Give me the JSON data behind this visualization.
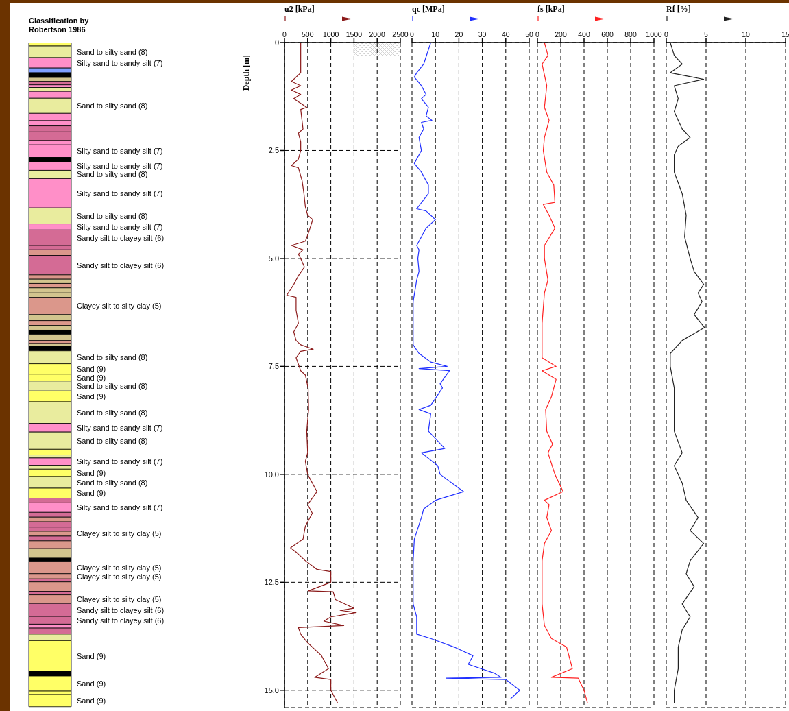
{
  "chart_data": [
    {
      "type": "bar",
      "title": "Classification by Robertson 1986",
      "categories": [
        null
      ],
      "stacked": true,
      "ylim": [
        15.4,
        0
      ],
      "tick_labels": false,
      "series": [
        {
          "color": "#ffff66",
          "values": [
            0.08
          ]
        },
        {
          "name": "Sand to silty sand (8)",
          "color": "#e9ec9e",
          "values": [
            0.27
          ]
        },
        {
          "name": "Silty sand to sandy silt (7)",
          "color": "#ff8fc8",
          "values": [
            0.24
          ]
        },
        {
          "color": "#7f9fff",
          "values": [
            0.11
          ]
        },
        {
          "color": "#000000",
          "values": [
            0.11
          ]
        },
        {
          "color": "#d2c48e",
          "values": [
            0.09
          ]
        },
        {
          "color": "#d46b95",
          "values": [
            0.08
          ]
        },
        {
          "color": "#ff8fc8",
          "values": [
            0.06
          ]
        },
        {
          "color": "#e9ec9e",
          "values": [
            0.09
          ]
        },
        {
          "color": "#ff8fc8",
          "values": [
            0.16
          ]
        },
        {
          "name": "Sand to silty sand (8)",
          "color": "#e9ec9e",
          "values": [
            0.35
          ]
        },
        {
          "color": "#ff8fc8",
          "values": [
            0.17
          ]
        },
        {
          "color": "#ff8fc8",
          "values": [
            0.12
          ]
        },
        {
          "color": "#d46b95",
          "values": [
            0.14
          ]
        },
        {
          "color": "#d46b95",
          "values": [
            0.2
          ]
        },
        {
          "color": "#ff8fc8",
          "values": [
            0.1
          ]
        },
        {
          "name": "Silty sand to sandy silt (7)",
          "color": "#ff8fc8",
          "values": [
            0.29
          ]
        },
        {
          "color": "#000000",
          "values": [
            0.11
          ]
        },
        {
          "name": "Silty sand to sandy silt (7)",
          "color": "#ff8fc8",
          "values": [
            0.19
          ]
        },
        {
          "name": "Sand to silty sand (8)",
          "color": "#e9ec9e",
          "values": [
            0.19
          ]
        },
        {
          "name": "Silty sand to sandy silt (7)",
          "color": "#ff8fc8",
          "values": [
            0.68
          ]
        },
        {
          "name": "Sand to silty sand (8)",
          "color": "#e9ec9e",
          "values": [
            0.37
          ]
        },
        {
          "name": "Silty sand to sandy silt (7)",
          "color": "#ff8fc8",
          "values": [
            0.14
          ]
        },
        {
          "name": "Sandy silt to clayey silt (6)",
          "color": "#d46b95",
          "values": [
            0.36
          ]
        },
        {
          "color": "#d46b95",
          "values": [
            0.1
          ]
        },
        {
          "color": "#db978b",
          "values": [
            0.13
          ]
        },
        {
          "name": "Sandy silt to clayey silt (6)",
          "color": "#d46b95",
          "values": [
            0.45
          ]
        },
        {
          "color": "#db978b",
          "values": [
            0.1
          ]
        },
        {
          "color": "#d2c48e",
          "values": [
            0.1
          ]
        },
        {
          "color": "#db978b",
          "values": [
            0.1
          ]
        },
        {
          "color": "#d2c48e",
          "values": [
            0.12
          ]
        },
        {
          "color": "#d2c48e",
          "values": [
            0.1
          ]
        },
        {
          "name": "Clayey silt to silty clay (5)",
          "color": "#db978b",
          "values": [
            0.4
          ]
        },
        {
          "color": "#d2c48e",
          "values": [
            0.14
          ]
        },
        {
          "color": "#db978b",
          "values": [
            0.11
          ]
        },
        {
          "color": "#d2c48e",
          "values": [
            0.11
          ]
        },
        {
          "color": "#000000",
          "values": [
            0.1
          ]
        },
        {
          "color": "#d2c48e",
          "values": [
            0.14
          ]
        },
        {
          "color": "#db978b",
          "values": [
            0.07
          ]
        },
        {
          "color": "#d2c48e",
          "values": [
            0.06
          ]
        },
        {
          "color": "#000000",
          "values": [
            0.11
          ]
        },
        {
          "name": "Sand to silty sand (8)",
          "color": "#e9ec9e",
          "values": [
            0.3
          ]
        },
        {
          "name": "Sand (9)",
          "color": "#ffff66",
          "values": [
            0.24
          ]
        },
        {
          "name": "Sand (9)",
          "color": "#ffff66",
          "values": [
            0.16
          ]
        },
        {
          "name": "Sand to silty sand (8)",
          "color": "#e9ec9e",
          "values": [
            0.23
          ]
        },
        {
          "name": "Sand (9)",
          "color": "#ffff66",
          "values": [
            0.25
          ]
        },
        {
          "name": "Sand to silty sand (8)",
          "color": "#e9ec9e",
          "values": [
            0.5
          ]
        },
        {
          "name": "Silty sand to sandy silt (7)",
          "color": "#ff8fc8",
          "values": [
            0.2
          ]
        },
        {
          "name": "Sand to silty sand (8)",
          "color": "#e9ec9e",
          "values": [
            0.4
          ]
        },
        {
          "color": "#ffff66",
          "values": [
            0.13
          ]
        },
        {
          "color": "#e9ec9e",
          "values": [
            0.07
          ]
        },
        {
          "name": "Silty sand to sandy silt (7)",
          "color": "#ff8fc8",
          "values": [
            0.17
          ]
        },
        {
          "color": "#e9ec9e",
          "values": [
            0.09
          ]
        },
        {
          "name": "Sand (9)",
          "color": "#ffff66",
          "values": [
            0.17
          ]
        },
        {
          "name": "Sand to silty sand (8)",
          "color": "#e9ec9e",
          "values": [
            0.27
          ]
        },
        {
          "name": "Sand (9)",
          "color": "#ffff66",
          "values": [
            0.23
          ]
        },
        {
          "color": "#d46b95",
          "values": [
            0.11
          ]
        },
        {
          "name": "Silty sand to sandy silt (7)",
          "color": "#ff8fc8",
          "values": [
            0.22
          ]
        },
        {
          "color": "#d46b95",
          "values": [
            0.11
          ]
        },
        {
          "color": "#db978b",
          "values": [
            0.11
          ]
        },
        {
          "color": "#d46b95",
          "values": [
            0.12
          ]
        },
        {
          "color": "#d46b95",
          "values": [
            0.1
          ]
        },
        {
          "name": "Clayey silt to silty clay (5)",
          "color": "#db978b",
          "values": [
            0.11
          ]
        },
        {
          "color": "#d46b95",
          "values": [
            0.11
          ]
        },
        {
          "color": "#db978b",
          "values": [
            0.18
          ]
        },
        {
          "color": "#d2c48e",
          "values": [
            0.1
          ]
        },
        {
          "color": "#d2c48e",
          "values": [
            0.12
          ]
        },
        {
          "color": "#000000",
          "values": [
            0.07
          ]
        },
        {
          "name": "Clayey silt to silty clay (5)",
          "color": "#db978b",
          "values": [
            0.29
          ]
        },
        {
          "name": "Clayey silt to silty clay (5)",
          "color": "#db978b",
          "values": [
            0.12
          ]
        },
        {
          "color": "#d46b95",
          "values": [
            0.07
          ]
        },
        {
          "color": "#db978b",
          "values": [
            0.22
          ]
        },
        {
          "color": "#d46b95",
          "values": [
            0.08
          ]
        },
        {
          "name": "Clayey silt to silty clay (5)",
          "color": "#db978b",
          "values": [
            0.2
          ]
        },
        {
          "name": "Sandy silt to clayey silt (6)",
          "color": "#d46b95",
          "values": [
            0.3
          ]
        },
        {
          "name": "Sandy silt to clayey silt (6)",
          "color": "#d46b95",
          "values": [
            0.18
          ]
        },
        {
          "color": "#ff8fc8",
          "values": [
            0.09
          ]
        },
        {
          "color": "#d46b95",
          "values": [
            0.14
          ]
        },
        {
          "color": "#e9ec9e",
          "values": [
            0.15
          ]
        },
        {
          "name": "Sand (9)",
          "color": "#ffff66",
          "values": [
            0.71
          ]
        },
        {
          "color": "#000000",
          "values": [
            0.11
          ]
        },
        {
          "name": "Sand (9)",
          "color": "#ffff66",
          "values": [
            0.35
          ]
        },
        {
          "color": "#ffff66",
          "values": [
            0.08
          ]
        },
        {
          "name": "Sand (9)",
          "color": "#ffff66",
          "values": [
            0.28
          ]
        }
      ]
    },
    {
      "type": "line",
      "xlabel": "u2 [kPa]",
      "ylabel": "Depth [m]",
      "xlim": [
        0,
        2500
      ],
      "xticks": [
        0,
        500,
        1000,
        1500,
        2000,
        2500
      ],
      "ylim": [
        15.4,
        0
      ],
      "yticks": [
        0,
        2.5,
        {
          "value": 5,
          "label": "5.0"
        },
        7.5,
        {
          "value": 10,
          "label": "10.0"
        },
        12.5,
        {
          "value": 15,
          "label": "15.0"
        }
      ],
      "grid": true,
      "series": [
        {
          "color": "#8b1a1a",
          "x": [
            350,
            350,
            350,
            150,
            350,
            150,
            350,
            200,
            480,
            350,
            400,
            300,
            350,
            350,
            300,
            150,
            300,
            380,
            420,
            450,
            500,
            610,
            520,
            450,
            150,
            400,
            300,
            350,
            430,
            300,
            200,
            50,
            250,
            250,
            300,
            200,
            250,
            350,
            620,
            350,
            250,
            350,
            450,
            510,
            520,
            480,
            500,
            450,
            500,
            700,
            500,
            600,
            450,
            400,
            130,
            250,
            450,
            700,
            1000,
            1000,
            510,
            1050,
            1100,
            1500,
            1200,
            1550,
            1000,
            850,
            1280,
            300,
            350,
            500,
            800,
            950,
            650,
            1000,
            1000,
            1150
          ],
          "values": [
            0,
            0.5,
            0.7,
            0.9,
            1.0,
            1.1,
            1.2,
            1.3,
            1.5,
            1.55,
            2.0,
            2.1,
            2.3,
            2.5,
            2.7,
            2.85,
            2.9,
            3.2,
            3.5,
            3.8,
            4.0,
            4.1,
            4.4,
            4.6,
            4.7,
            4.8,
            4.9,
            5.0,
            5.2,
            5.4,
            5.6,
            5.85,
            5.9,
            6.2,
            6.5,
            6.7,
            6.9,
            7.0,
            7.1,
            7.15,
            7.3,
            7.6,
            7.7,
            8.0,
            8.5,
            9.0,
            9.5,
            9.7,
            10.0,
            10.4,
            10.7,
            10.9,
            11.2,
            11.5,
            11.7,
            11.8,
            12.0,
            12.2,
            12.25,
            12.5,
            12.7,
            12.72,
            12.9,
            13.1,
            13.15,
            13.2,
            13.3,
            13.4,
            13.5,
            13.55,
            13.7,
            13.9,
            14.2,
            14.5,
            14.7,
            14.75,
            15.0,
            15.3
          ]
        }
      ]
    },
    {
      "type": "line",
      "xlabel": "qc [MPa]",
      "xlim": [
        0,
        50
      ],
      "xticks": [
        0,
        10,
        20,
        30,
        40,
        50
      ],
      "ylim": [
        15.4,
        0
      ],
      "yticks": [
        0,
        2.5,
        5,
        7.5,
        10,
        12.5,
        15
      ],
      "grid": true,
      "tick_labels": "x",
      "series": [
        {
          "color": "#2030ff",
          "x": [
            8,
            5,
            2,
            1,
            4,
            6,
            4,
            7,
            6,
            8.5,
            4,
            5,
            3,
            4,
            1,
            4,
            7,
            7,
            2,
            6,
            10,
            6,
            3,
            2,
            3,
            2.5,
            3,
            2,
            0.5,
            0.5,
            0.5,
            3,
            8,
            15,
            3,
            16,
            12,
            13,
            8,
            3,
            8,
            7,
            14,
            4,
            11,
            12,
            22,
            10,
            5,
            4,
            1,
            0.5,
            0.5,
            2,
            2,
            8,
            18,
            26,
            24,
            35,
            38,
            14.5,
            40,
            46,
            42
          ],
          "values": [
            0,
            0.5,
            0.7,
            0.8,
            1.0,
            1.2,
            1.3,
            1.5,
            1.7,
            1.8,
            1.85,
            2.0,
            2.2,
            2.5,
            2.8,
            3.0,
            3.3,
            3.5,
            3.85,
            3.9,
            4.1,
            4.3,
            4.6,
            4.7,
            4.8,
            5.0,
            5.3,
            5.5,
            6.0,
            6.5,
            7.0,
            7.2,
            7.4,
            7.5,
            7.55,
            7.6,
            7.9,
            8.0,
            8.4,
            8.5,
            8.6,
            9.0,
            9.4,
            9.5,
            9.8,
            10.0,
            10.4,
            10.6,
            10.8,
            11.0,
            11.5,
            12.0,
            13.0,
            13.3,
            13.7,
            13.8,
            14.0,
            14.2,
            14.4,
            14.6,
            14.7,
            14.72,
            14.75,
            15.0,
            15.2
          ]
        }
      ]
    },
    {
      "type": "line",
      "xlabel": "fs [kPa]",
      "xlim": [
        0,
        1000
      ],
      "xticks": [
        0,
        200,
        400,
        600,
        800,
        1000
      ],
      "ylim": [
        15.4,
        0
      ],
      "yticks": [
        0,
        2.5,
        5,
        7.5,
        10,
        12.5,
        15
      ],
      "grid": true,
      "tick_labels": "x",
      "series": [
        {
          "color": "#ff2020",
          "x": [
            60,
            90,
            40,
            80,
            60,
            100,
            60,
            50,
            80,
            140,
            150,
            50,
            100,
            150,
            60,
            60,
            90,
            60,
            40,
            40,
            160,
            40,
            160,
            120,
            70,
            80,
            130,
            90,
            150,
            220,
            60,
            100,
            80,
            120,
            60,
            40,
            40,
            60,
            120,
            250,
            300,
            120,
            350,
            400,
            430
          ],
          "values": [
            0,
            0.3,
            0.5,
            1.0,
            1.5,
            1.8,
            2.2,
            2.5,
            3.0,
            3.3,
            3.7,
            3.75,
            4.0,
            4.3,
            4.7,
            5.0,
            5.5,
            5.8,
            6.5,
            7.3,
            7.5,
            7.6,
            7.8,
            8.2,
            8.5,
            9.0,
            9.3,
            9.5,
            10.0,
            10.4,
            10.6,
            10.7,
            11.0,
            11.3,
            11.6,
            12.0,
            13.0,
            13.5,
            13.8,
            14.0,
            14.5,
            14.7,
            14.72,
            15.0,
            15.3
          ]
        }
      ]
    },
    {
      "type": "line",
      "xlabel": "Rf [%]",
      "xlim": [
        0,
        15
      ],
      "xticks": [
        0,
        5,
        10,
        15
      ],
      "ylim": [
        15.4,
        0
      ],
      "yticks": [
        0,
        2.5,
        5,
        7.5,
        10,
        12.5,
        15
      ],
      "grid": true,
      "tick_labels": "x",
      "series": [
        {
          "color": "#222222",
          "x": [
            0.5,
            1,
            2,
            0.5,
            4.7,
            1,
            1.5,
            1,
            1.5,
            2,
            3,
            1.5,
            1,
            1,
            2,
            2.5,
            2.3,
            3,
            3.5,
            4.7,
            4,
            4.5,
            3.5,
            4.8,
            2,
            0.5,
            0.5,
            1,
            1,
            2,
            1,
            2,
            2.5,
            4,
            3,
            4.7,
            3,
            2.5,
            3.5,
            2,
            3,
            2,
            1.5,
            1.5,
            1,
            1
          ],
          "values": [
            0,
            0.3,
            0.5,
            0.7,
            0.85,
            1.0,
            1.3,
            1.6,
            1.8,
            2.0,
            2.2,
            2.4,
            2.6,
            3.0,
            3.5,
            4.0,
            4.5,
            5.0,
            5.3,
            5.6,
            5.8,
            6.0,
            6.3,
            6.6,
            6.9,
            7.2,
            7.5,
            8.0,
            9.0,
            9.5,
            9.8,
            10.2,
            10.6,
            11.0,
            11.3,
            11.6,
            12.0,
            12.3,
            12.6,
            13.0,
            13.3,
            13.6,
            14.0,
            14.5,
            15.0,
            15.3
          ]
        }
      ]
    }
  ]
}
